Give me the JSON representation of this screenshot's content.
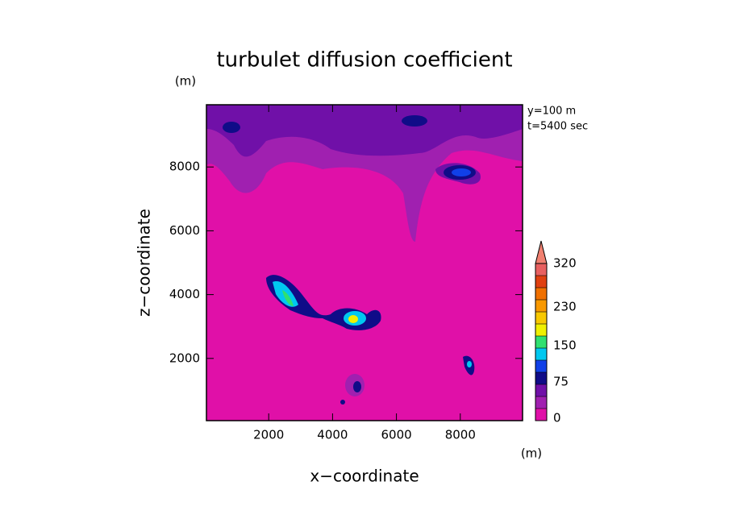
{
  "chart_data": {
    "type": "contour",
    "title": "turbulet diffusion coefficient",
    "x_label": "x−coordinate",
    "y_label": "z−coordinate",
    "x_unit": "(m)",
    "y_unit": "(m)",
    "annotations": [
      "y=100 m",
      "t=5400 sec"
    ],
    "xlim": [
      50,
      9950
    ],
    "ylim": [
      50,
      9950
    ],
    "xticks": [
      2000,
      4000,
      6000,
      8000
    ],
    "yticks": [
      2000,
      4000,
      6000,
      8000
    ],
    "colorbar": {
      "lim": [
        0,
        325
      ],
      "levels": [
        0,
        25,
        50,
        75,
        100,
        125,
        150,
        175,
        200,
        225,
        250,
        275,
        300,
        325
      ],
      "colors": [
        "#e010a8",
        "#a020b0",
        "#7010a8",
        "#100c88",
        "#1040e8",
        "#00c8f0",
        "#30e070",
        "#f0f000",
        "#f8c800",
        "#f89800",
        "#f07000",
        "#e04010",
        "#e86060"
      ],
      "ticks": [
        0,
        75,
        150,
        230,
        320
      ],
      "extend_color": "#f08070"
    }
  }
}
